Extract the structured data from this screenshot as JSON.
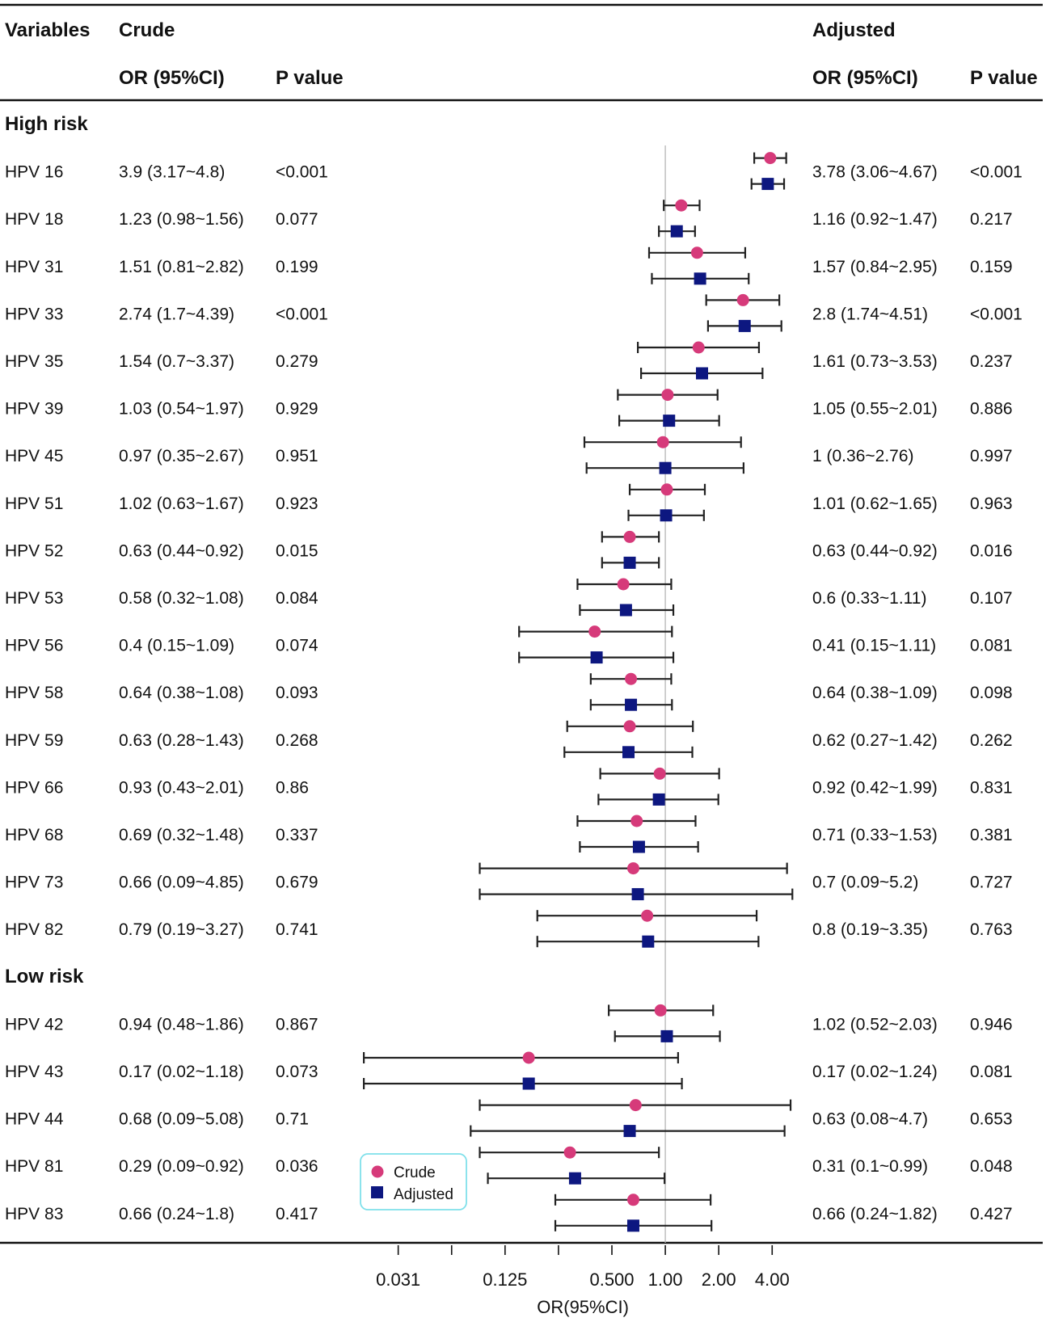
{
  "headers": {
    "variables": "Variables",
    "crude": "Crude",
    "adjusted": "Adjusted",
    "or_ci": "OR (95%CI)",
    "p_value": "P value"
  },
  "legend": {
    "crude": "Crude",
    "adjusted": "Adjusted"
  },
  "colors": {
    "crude": "#d63a7a",
    "adjusted": "#0d1780",
    "ref_line": "#b5b5b5",
    "whisker": "#222222",
    "legend_border": "#7fe0ea"
  },
  "chart_data": {
    "type": "forest",
    "xlabel": "OR(95%CI)",
    "xscale": "log2",
    "xlim": [
      0.0215,
      5.35
    ],
    "reference_value": 1,
    "x_ticks": [
      0.03125,
      0.0625,
      0.125,
      0.25,
      0.5,
      1,
      2,
      4
    ],
    "x_tick_labels": [
      "0.031",
      "",
      "0.125",
      "",
      "0.500",
      "1.00",
      "2.00",
      "4.00"
    ],
    "series": [
      "Crude",
      "Adjusted"
    ],
    "groups": [
      {
        "name": "High risk",
        "rows": [
          {
            "label": "HPV 16",
            "crude": {
              "text": "3.9 (3.17~4.8)",
              "or": 3.9,
              "lo": 3.17,
              "hi": 4.8,
              "p": "<0.001"
            },
            "adjusted": {
              "text": "3.78 (3.06~4.67)",
              "or": 3.78,
              "lo": 3.06,
              "hi": 4.67,
              "p": "<0.001"
            }
          },
          {
            "label": "HPV 18",
            "crude": {
              "text": "1.23 (0.98~1.56)",
              "or": 1.23,
              "lo": 0.98,
              "hi": 1.56,
              "p": "0.077"
            },
            "adjusted": {
              "text": "1.16 (0.92~1.47)",
              "or": 1.16,
              "lo": 0.92,
              "hi": 1.47,
              "p": "0.217"
            }
          },
          {
            "label": "HPV 31",
            "crude": {
              "text": "1.51 (0.81~2.82)",
              "or": 1.51,
              "lo": 0.81,
              "hi": 2.82,
              "p": "0.199"
            },
            "adjusted": {
              "text": "1.57 (0.84~2.95)",
              "or": 1.57,
              "lo": 0.84,
              "hi": 2.95,
              "p": "0.159"
            }
          },
          {
            "label": "HPV 33",
            "crude": {
              "text": "2.74 (1.7~4.39)",
              "or": 2.74,
              "lo": 1.7,
              "hi": 4.39,
              "p": "<0.001"
            },
            "adjusted": {
              "text": "2.8 (1.74~4.51)",
              "or": 2.8,
              "lo": 1.74,
              "hi": 4.51,
              "p": "<0.001"
            }
          },
          {
            "label": "HPV 35",
            "crude": {
              "text": "1.54 (0.7~3.37)",
              "or": 1.54,
              "lo": 0.7,
              "hi": 3.37,
              "p": "0.279"
            },
            "adjusted": {
              "text": "1.61 (0.73~3.53)",
              "or": 1.61,
              "lo": 0.73,
              "hi": 3.53,
              "p": "0.237"
            }
          },
          {
            "label": "HPV 39",
            "crude": {
              "text": "1.03 (0.54~1.97)",
              "or": 1.03,
              "lo": 0.54,
              "hi": 1.97,
              "p": "0.929"
            },
            "adjusted": {
              "text": "1.05 (0.55~2.01)",
              "or": 1.05,
              "lo": 0.55,
              "hi": 2.01,
              "p": "0.886"
            }
          },
          {
            "label": "HPV 45",
            "crude": {
              "text": "0.97 (0.35~2.67)",
              "or": 0.97,
              "lo": 0.35,
              "hi": 2.67,
              "p": "0.951"
            },
            "adjusted": {
              "text": "1 (0.36~2.76)",
              "or": 1,
              "lo": 0.36,
              "hi": 2.76,
              "p": "0.997"
            }
          },
          {
            "label": "HPV 51",
            "crude": {
              "text": "1.02 (0.63~1.67)",
              "or": 1.02,
              "lo": 0.63,
              "hi": 1.67,
              "p": "0.923"
            },
            "adjusted": {
              "text": "1.01 (0.62~1.65)",
              "or": 1.01,
              "lo": 0.62,
              "hi": 1.65,
              "p": "0.963"
            }
          },
          {
            "label": "HPV 52",
            "crude": {
              "text": "0.63 (0.44~0.92)",
              "or": 0.63,
              "lo": 0.44,
              "hi": 0.92,
              "p": "0.015"
            },
            "adjusted": {
              "text": "0.63 (0.44~0.92)",
              "or": 0.63,
              "lo": 0.44,
              "hi": 0.92,
              "p": "0.016"
            }
          },
          {
            "label": "HPV 53",
            "crude": {
              "text": "0.58 (0.32~1.08)",
              "or": 0.58,
              "lo": 0.32,
              "hi": 1.08,
              "p": "0.084"
            },
            "adjusted": {
              "text": "0.6 (0.33~1.11)",
              "or": 0.6,
              "lo": 0.33,
              "hi": 1.11,
              "p": "0.107"
            }
          },
          {
            "label": "HPV 56",
            "crude": {
              "text": "0.4 (0.15~1.09)",
              "or": 0.4,
              "lo": 0.15,
              "hi": 1.09,
              "p": "0.074"
            },
            "adjusted": {
              "text": "0.41 (0.15~1.11)",
              "or": 0.41,
              "lo": 0.15,
              "hi": 1.11,
              "p": "0.081"
            }
          },
          {
            "label": "HPV 58",
            "crude": {
              "text": "0.64 (0.38~1.08)",
              "or": 0.64,
              "lo": 0.38,
              "hi": 1.08,
              "p": "0.093"
            },
            "adjusted": {
              "text": "0.64 (0.38~1.09)",
              "or": 0.64,
              "lo": 0.38,
              "hi": 1.09,
              "p": "0.098"
            }
          },
          {
            "label": "HPV 59",
            "crude": {
              "text": "0.63 (0.28~1.43)",
              "or": 0.63,
              "lo": 0.28,
              "hi": 1.43,
              "p": "0.268"
            },
            "adjusted": {
              "text": "0.62 (0.27~1.42)",
              "or": 0.62,
              "lo": 0.27,
              "hi": 1.42,
              "p": "0.262"
            }
          },
          {
            "label": "HPV 66",
            "crude": {
              "text": "0.93 (0.43~2.01)",
              "or": 0.93,
              "lo": 0.43,
              "hi": 2.01,
              "p": "0.86"
            },
            "adjusted": {
              "text": "0.92 (0.42~1.99)",
              "or": 0.92,
              "lo": 0.42,
              "hi": 1.99,
              "p": "0.831"
            }
          },
          {
            "label": "HPV 68",
            "crude": {
              "text": "0.69 (0.32~1.48)",
              "or": 0.69,
              "lo": 0.32,
              "hi": 1.48,
              "p": "0.337"
            },
            "adjusted": {
              "text": "0.71 (0.33~1.53)",
              "or": 0.71,
              "lo": 0.33,
              "hi": 1.53,
              "p": "0.381"
            }
          },
          {
            "label": "HPV 73",
            "crude": {
              "text": "0.66 (0.09~4.85)",
              "or": 0.66,
              "lo": 0.09,
              "hi": 4.85,
              "p": "0.679"
            },
            "adjusted": {
              "text": "0.7 (0.09~5.2)",
              "or": 0.7,
              "lo": 0.09,
              "hi": 5.2,
              "p": "0.727"
            }
          },
          {
            "label": "HPV 82",
            "crude": {
              "text": "0.79 (0.19~3.27)",
              "or": 0.79,
              "lo": 0.19,
              "hi": 3.27,
              "p": "0.741"
            },
            "adjusted": {
              "text": "0.8 (0.19~3.35)",
              "or": 0.8,
              "lo": 0.19,
              "hi": 3.35,
              "p": "0.763"
            }
          }
        ]
      },
      {
        "name": "Low risk",
        "rows": [
          {
            "label": "HPV 42",
            "crude": {
              "text": "0.94 (0.48~1.86)",
              "or": 0.94,
              "lo": 0.48,
              "hi": 1.86,
              "p": "0.867"
            },
            "adjusted": {
              "text": "1.02 (0.52~2.03)",
              "or": 1.02,
              "lo": 0.52,
              "hi": 2.03,
              "p": "0.946"
            }
          },
          {
            "label": "HPV 43",
            "crude": {
              "text": "0.17 (0.02~1.18)",
              "or": 0.17,
              "lo": 0.02,
              "hi": 1.18,
              "p": "0.073"
            },
            "adjusted": {
              "text": "0.17 (0.02~1.24)",
              "or": 0.17,
              "lo": 0.02,
              "hi": 1.24,
              "p": "0.081"
            }
          },
          {
            "label": "HPV 44",
            "crude": {
              "text": "0.68 (0.09~5.08)",
              "or": 0.68,
              "lo": 0.09,
              "hi": 5.08,
              "p": "0.71"
            },
            "adjusted": {
              "text": "0.63 (0.08~4.7)",
              "or": 0.63,
              "lo": 0.08,
              "hi": 4.7,
              "p": "0.653"
            }
          },
          {
            "label": "HPV 81",
            "crude": {
              "text": "0.29 (0.09~0.92)",
              "or": 0.29,
              "lo": 0.09,
              "hi": 0.92,
              "p": "0.036"
            },
            "adjusted": {
              "text": "0.31 (0.1~0.99)",
              "or": 0.31,
              "lo": 0.1,
              "hi": 0.99,
              "p": "0.048"
            }
          },
          {
            "label": "HPV 83",
            "crude": {
              "text": "0.66 (0.24~1.8)",
              "or": 0.66,
              "lo": 0.24,
              "hi": 1.8,
              "p": "0.417"
            },
            "adjusted": {
              "text": "0.66 (0.24~1.82)",
              "or": 0.66,
              "lo": 0.24,
              "hi": 1.82,
              "p": "0.427"
            }
          }
        ]
      }
    ]
  }
}
